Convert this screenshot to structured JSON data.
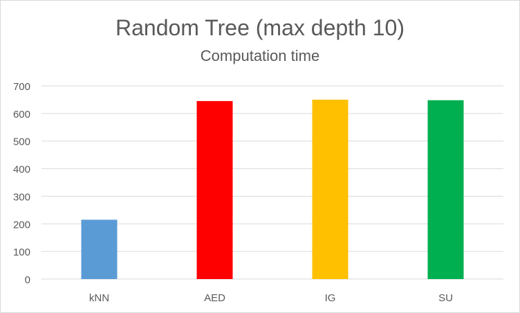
{
  "chart_data": {
    "type": "bar",
    "title": "Random Tree (max depth 10)",
    "subtitle": "Computation time",
    "categories": [
      "kNN",
      "AED",
      "IG",
      "SU"
    ],
    "values": [
      215,
      645,
      650,
      648
    ],
    "bar_colors": [
      "#5b9bd5",
      "#ff0000",
      "#ffc000",
      "#00b050"
    ],
    "ylim": [
      0,
      700
    ],
    "yticks": [
      0,
      100,
      200,
      300,
      400,
      500,
      600,
      700
    ],
    "xlabel": "",
    "ylabel": "",
    "grid": true,
    "legend": "none"
  },
  "colors": {
    "text": "#595959",
    "gridline": "#d9d9d9",
    "axis": "#d9d9d9"
  }
}
